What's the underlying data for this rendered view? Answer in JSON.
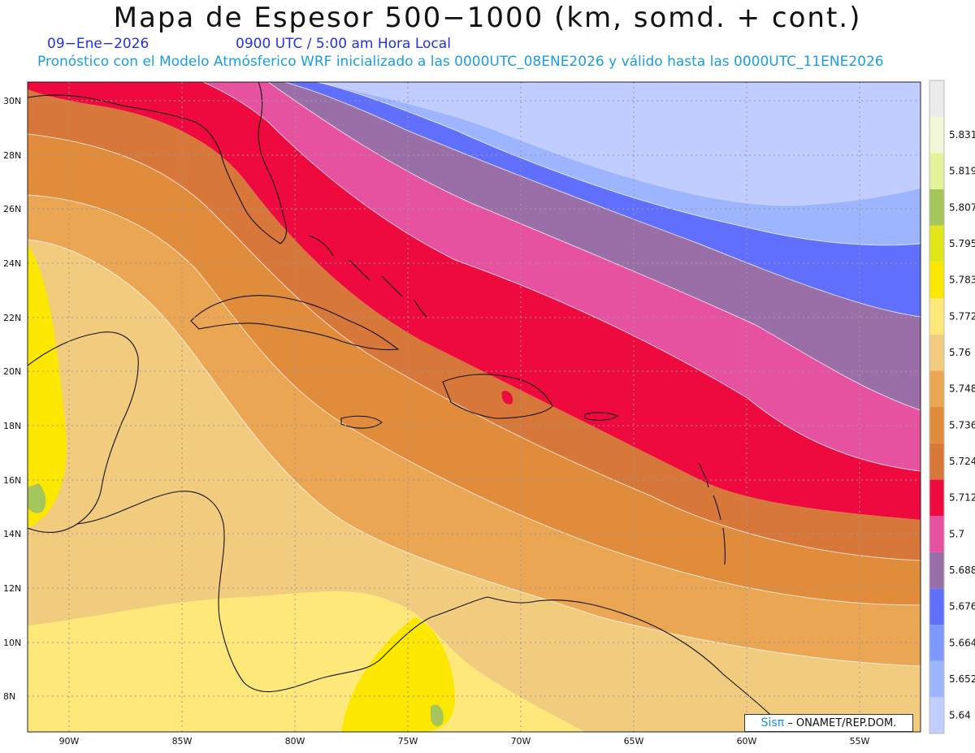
{
  "header": {
    "title": "Mapa de Espesor 500−1000 (km, somd. + cont.)",
    "date": "09−Ene−2026",
    "time": "0900 UTC / 5:00 am Hora Local",
    "model_info": "Pronóstico con el Modelo Atmósferico WRF inicializado a las 0000UTC_08ENE2026 y válido hasta las  0000UTC_11ENE2026"
  },
  "map": {
    "lat_labels": [
      "30N",
      "28N",
      "26N",
      "24N",
      "22N",
      "20N",
      "18N",
      "16N",
      "14N",
      "12N",
      "10N",
      "8N"
    ],
    "lon_labels": [
      "90W",
      "85W",
      "80W",
      "75W",
      "70W",
      "65W",
      "60W",
      "55W"
    ],
    "bands": [
      {
        "name": "purple-band",
        "color": "#9a6fa8"
      },
      {
        "name": "magenta-band",
        "color": "#e651a0"
      },
      {
        "name": "red-band",
        "color": "#ee0a3e"
      },
      {
        "name": "dark-orange-band",
        "color": "#d8773a"
      },
      {
        "name": "orange-band",
        "color": "#e18c3a"
      },
      {
        "name": "light-orange-band",
        "color": "#eba654"
      },
      {
        "name": "tan-band",
        "color": "#f2cc7e"
      },
      {
        "name": "yellow-band",
        "color": "#ffe87a"
      },
      {
        "name": "bright-yellow-band",
        "color": "#fbe700"
      }
    ]
  },
  "colorbar": {
    "colors": [
      "#c1cdfe",
      "#9db4fe",
      "#7d98fe",
      "#6170fc",
      "#9a6fa8",
      "#e651a0",
      "#ee0a3e",
      "#d8773a",
      "#e18c3a",
      "#eba654",
      "#f2cc7e",
      "#ffe87a",
      "#fbe700",
      "#e1e61a",
      "#a4c65b",
      "#e6f39b",
      "#f4f7d7",
      "#ebebeb"
    ],
    "labels": [
      "5.64",
      "5.652",
      "5.664",
      "5.676",
      "5.688",
      "5.7",
      "5.712",
      "5.724",
      "5.736",
      "5.748",
      "5.76",
      "5.772",
      "5.783",
      "5.795",
      "5.807",
      "5.819",
      "5.831"
    ]
  },
  "credit": {
    "brand": "Sisπ",
    "text": "– ONAMET/REP.DOM."
  }
}
